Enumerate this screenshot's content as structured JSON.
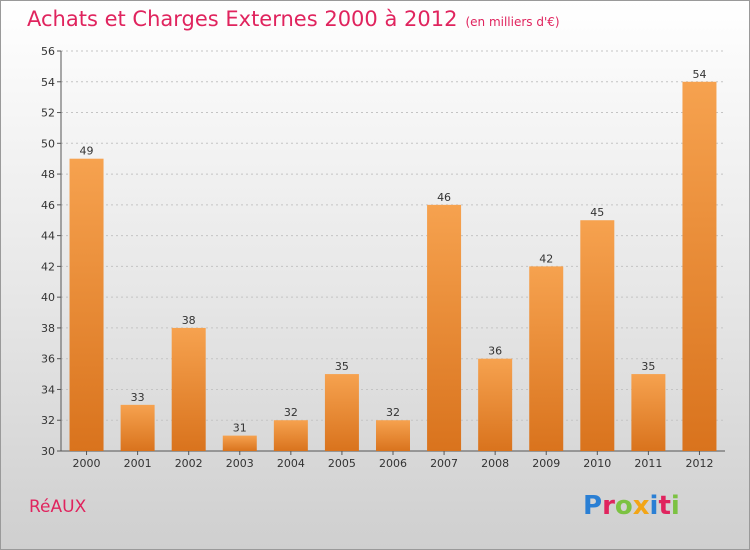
{
  "title": "Achats et Charges Externes 2000 à 2012",
  "unit_label": "(en milliers d'€)",
  "commune": "RéAUX",
  "brand": "Proxiti",
  "colors": {
    "title": "#e0245e",
    "bar_top": "#f6a24f",
    "bar_bottom": "#d9731d"
  },
  "chart_data": {
    "type": "bar",
    "title": "Achats et Charges Externes 2000 à 2012",
    "subtitle": "(en milliers d'€)",
    "categories": [
      "2000",
      "2001",
      "2002",
      "2003",
      "2004",
      "2005",
      "2006",
      "2007",
      "2008",
      "2009",
      "2010",
      "2011",
      "2012"
    ],
    "values": [
      49,
      33,
      38,
      31,
      32,
      35,
      32,
      46,
      36,
      42,
      45,
      35,
      54
    ],
    "ylim": [
      30,
      56
    ],
    "yticks": [
      30,
      32,
      34,
      36,
      38,
      40,
      42,
      44,
      46,
      48,
      50,
      52,
      54,
      56
    ],
    "grid": true,
    "xlabel": "",
    "ylabel": ""
  }
}
